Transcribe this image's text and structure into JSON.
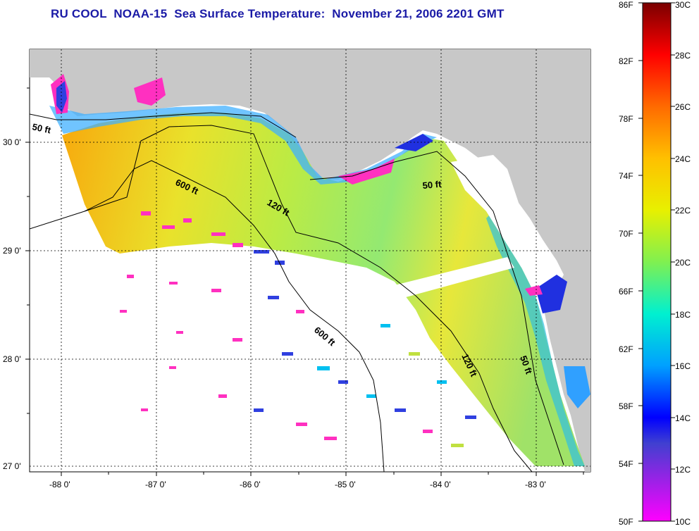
{
  "title": "RU COOL  NOAA-15  Sea Surface Temperature:  November 21, 2006 2201 GMT",
  "map": {
    "lon_ticks": [
      "-88 0'",
      "-87 0'",
      "-86 0'",
      "-85 0'",
      "-84 0'",
      "-83 0'"
    ],
    "lat_ticks": [
      "30 0'",
      "29 0'",
      "28 0'",
      "27 0'"
    ],
    "contour_labels": [
      "50 ft",
      "600 ft",
      "120 ft",
      "50 ft",
      "600 ft",
      "120 ft",
      "50 ft"
    ]
  },
  "colorbar": {
    "fahrenheit_labels": [
      "86F",
      "82F",
      "78F",
      "74F",
      "70F",
      "66F",
      "62F",
      "58F",
      "54F",
      "50F"
    ],
    "celsius_labels": [
      "30C",
      "28C",
      "26C",
      "24C",
      "22C",
      "20C",
      "18C",
      "16C",
      "14C",
      "12C",
      "10C"
    ]
  },
  "colors": {
    "title": "#1a1aa6",
    "land": "#c8c8c8",
    "no_data": "#ffffff"
  }
}
